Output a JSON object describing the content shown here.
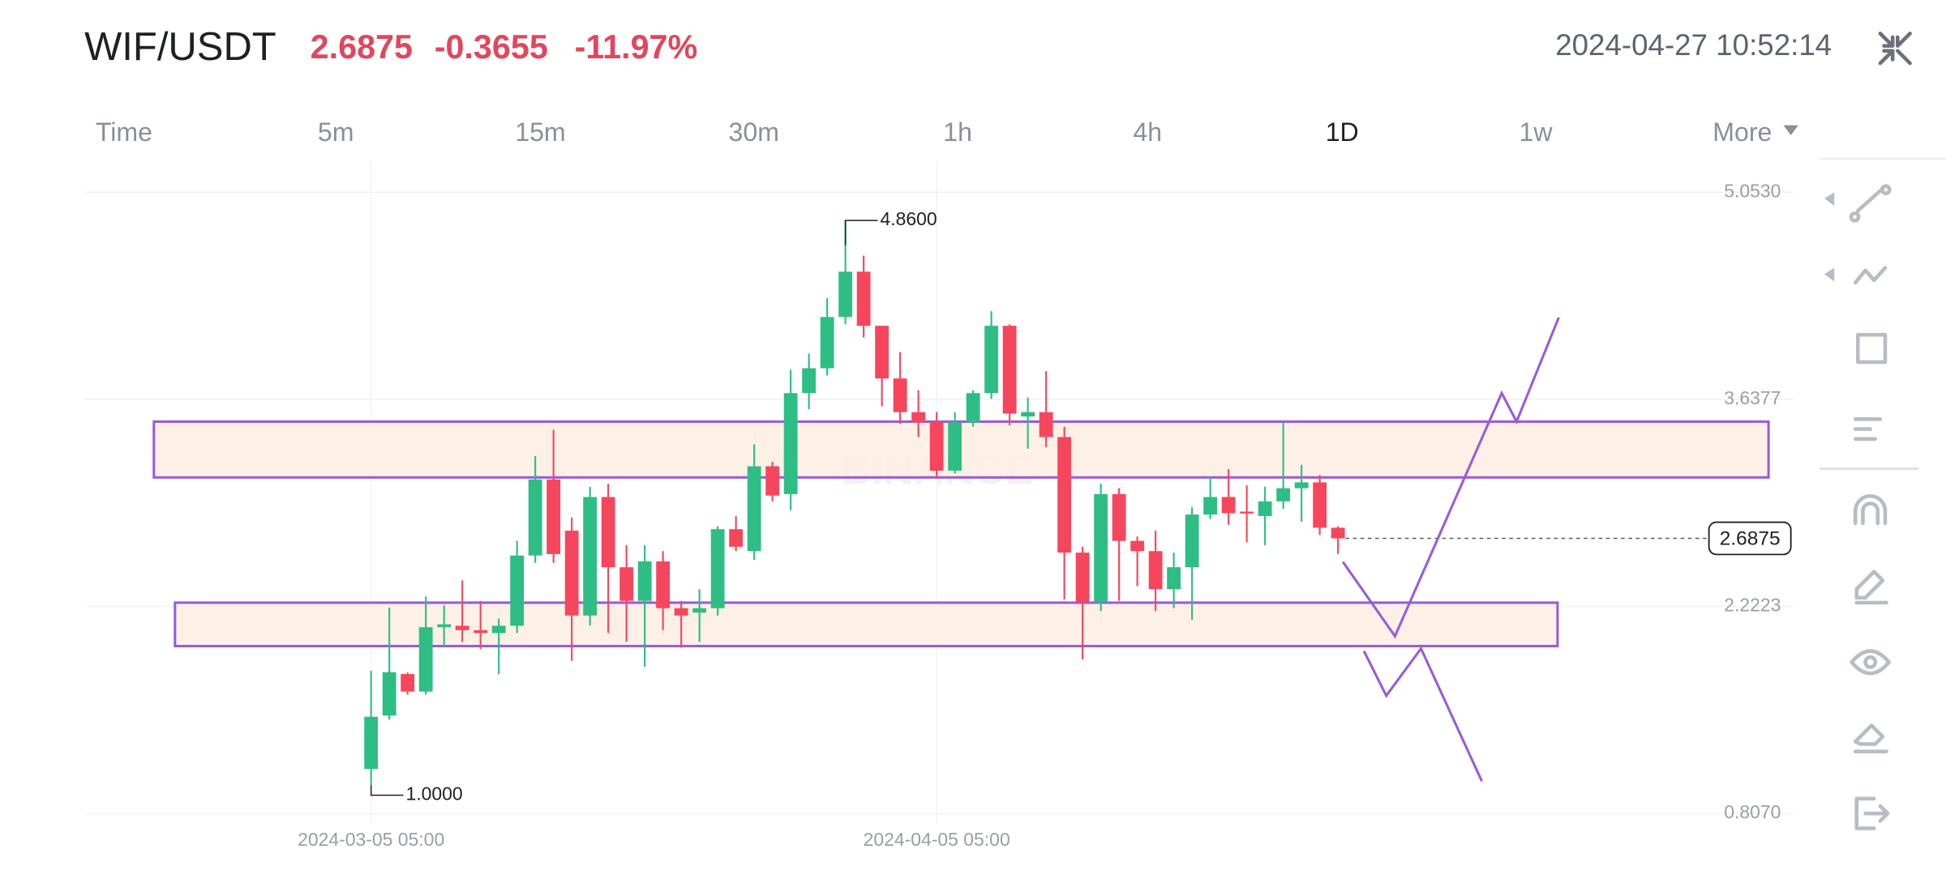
{
  "header": {
    "pair": "WIF/USDT",
    "price": "2.6875",
    "change": "-0.3655",
    "change_pct": "-11.97%",
    "timestamp": "2024-04-27 10:52:14"
  },
  "tabs": {
    "items": [
      "Time",
      "5m",
      "15m",
      "30m",
      "1h",
      "4h",
      "1D",
      "1w",
      "More"
    ],
    "active": 6
  },
  "chart_data": {
    "type": "candlestick",
    "watermark": "BINANCE",
    "up_color": "#2ebd85",
    "down_color": "#f6465d",
    "open": [
      1.112,
      1.476,
      1.76,
      1.64,
      2.08,
      2.09,
      2.06,
      2.04,
      2.09,
      2.57,
      3.09,
      2.74,
      2.16,
      2.97,
      2.49,
      2.26,
      2.53,
      2.21,
      2.18,
      2.21,
      2.75,
      2.6,
      3.18,
      2.99,
      3.68,
      3.85,
      4.2,
      4.51,
      4.14,
      3.78,
      3.55,
      3.48,
      3.15,
      3.48,
      3.68,
      4.14,
      3.52,
      3.55,
      3.38,
      2.59,
      2.25,
      2.99,
      2.67,
      2.6,
      2.34,
      2.49,
      2.85,
      2.97,
      2.87,
      2.84,
      2.94,
      3.03,
      3.07,
      2.76
    ],
    "high": [
      1.782,
      2.214,
      1.77,
      2.29,
      2.23,
      2.4,
      2.26,
      2.14,
      2.67,
      3.25,
      3.43,
      2.83,
      3.04,
      3.06,
      2.64,
      2.64,
      2.6,
      2.26,
      2.34,
      2.77,
      2.84,
      3.33,
      3.21,
      3.84,
      3.95,
      4.33,
      4.86,
      4.62,
      4.14,
      3.96,
      3.7,
      3.55,
      3.55,
      3.7,
      4.24,
      4.15,
      3.65,
      3.83,
      3.45,
      2.63,
      3.06,
      3.03,
      2.7,
      2.74,
      2.59,
      2.9,
      3.11,
      3.16,
      3.05,
      3.04,
      3.48,
      3.19,
      3.12,
      2.77
    ],
    "low": [
      1.0,
      1.45,
      1.62,
      1.62,
      1.95,
      1.98,
      1.93,
      1.76,
      2.04,
      2.52,
      2.52,
      1.85,
      2.09,
      2.04,
      1.98,
      1.81,
      2.06,
      1.94,
      1.98,
      2.16,
      2.6,
      2.54,
      2.94,
      2.88,
      3.57,
      3.8,
      4.15,
      4.06,
      3.59,
      3.47,
      3.38,
      3.1,
      3.13,
      3.45,
      3.64,
      3.46,
      3.3,
      3.31,
      2.27,
      1.86,
      2.19,
      2.26,
      2.36,
      2.19,
      2.21,
      2.13,
      2.82,
      2.78,
      2.66,
      2.64,
      2.89,
      2.8,
      2.71,
      2.58
    ],
    "close": [
      1.468,
      1.773,
      1.64,
      2.08,
      2.1,
      2.06,
      2.04,
      2.09,
      2.57,
      3.09,
      2.58,
      2.16,
      2.97,
      2.49,
      2.26,
      2.53,
      2.21,
      2.16,
      2.21,
      2.75,
      2.63,
      3.18,
      2.98,
      3.68,
      3.85,
      4.2,
      4.51,
      4.14,
      3.78,
      3.55,
      3.48,
      3.15,
      3.48,
      3.68,
      4.14,
      3.54,
      3.55,
      3.38,
      2.59,
      2.25,
      2.99,
      2.67,
      2.6,
      2.34,
      2.49,
      2.85,
      2.97,
      2.86,
      2.86,
      2.94,
      3.03,
      3.07,
      2.76,
      2.6875
    ],
    "ylim": [
      0.807,
      5.053
    ],
    "yticks": [
      {
        "value": 5.053,
        "label": "5.0530"
      },
      {
        "value": 3.6377,
        "label": "3.6377"
      },
      {
        "value": 2.2223,
        "label": "2.2223"
      },
      {
        "value": 0.807,
        "label": "0.8070"
      }
    ],
    "xticks": [
      {
        "value": 0,
        "label": "2024-03-05 05:00"
      },
      {
        "value": 31,
        "label": "2024-04-05 05:00"
      }
    ],
    "high_marker": {
      "value": 4.86,
      "label": "4.8600"
    },
    "low_marker": {
      "value": 1,
      "label": "1.0000"
    },
    "last_price": 2.6875,
    "grid": true
  }
}
